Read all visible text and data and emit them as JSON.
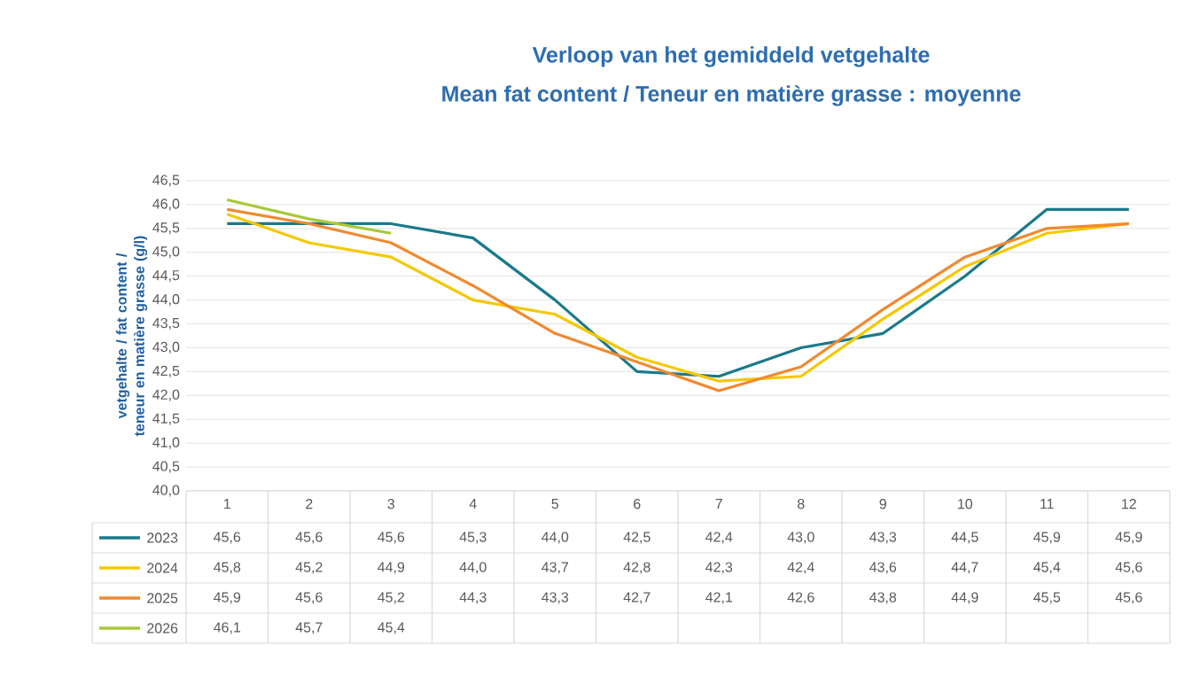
{
  "chart_data": {
    "type": "line",
    "title": "Verloop van het gemiddeld vetgehalte",
    "subtitle": "Mean fat content / Teneur en matière grasse : moyenne",
    "ylabel": "vetgehalte / fat content / teneur en matière grasse (g/l)",
    "categories": [
      "1",
      "2",
      "3",
      "4",
      "5",
      "6",
      "7",
      "8",
      "9",
      "10",
      "11",
      "12"
    ],
    "series": [
      {
        "name": "2023",
        "color": "#1a7a8a",
        "values": [
          45.6,
          45.6,
          45.6,
          45.3,
          44.0,
          42.5,
          42.4,
          43.0,
          43.3,
          44.5,
          45.9,
          45.9
        ],
        "value_labels": [
          "45,6",
          "45,6",
          "45,6",
          "45,3",
          "44,0",
          "42,5",
          "42,4",
          "43,0",
          "43,3",
          "44,5",
          "45,9",
          "45,9"
        ]
      },
      {
        "name": "2024",
        "color": "#f5c800",
        "values": [
          45.8,
          45.2,
          44.9,
          44.0,
          43.7,
          42.8,
          42.3,
          42.4,
          43.6,
          44.7,
          45.4,
          45.6
        ],
        "value_labels": [
          "45,8",
          "45,2",
          "44,9",
          "44,0",
          "43,7",
          "42,8",
          "42,3",
          "42,4",
          "43,6",
          "44,7",
          "45,4",
          "45,6"
        ]
      },
      {
        "name": "2025",
        "color": "#f08a30",
        "values": [
          45.9,
          45.6,
          45.2,
          44.3,
          43.3,
          42.7,
          42.1,
          42.6,
          43.8,
          44.9,
          45.5,
          45.6
        ],
        "value_labels": [
          "45,9",
          "45,6",
          "45,2",
          "44,3",
          "43,3",
          "42,7",
          "42,1",
          "42,6",
          "43,8",
          "44,9",
          "45,5",
          "45,6"
        ]
      },
      {
        "name": "2026",
        "color": "#a8c83a",
        "values": [
          46.1,
          45.7,
          45.4,
          null,
          null,
          null,
          null,
          null,
          null,
          null,
          null,
          null
        ],
        "value_labels": [
          "46,1",
          "45,7",
          "45,4",
          null,
          null,
          null,
          null,
          null,
          null,
          null,
          null,
          null
        ]
      }
    ],
    "ylim": [
      40.0,
      46.5
    ],
    "yticks": [
      {
        "value": 40.0,
        "label": "40,0"
      },
      {
        "value": 40.5,
        "label": "40,5"
      },
      {
        "value": 41.0,
        "label": "41,0"
      },
      {
        "value": 41.5,
        "label": "41,5"
      },
      {
        "value": 42.0,
        "label": "42,0"
      },
      {
        "value": 42.5,
        "label": "42,5"
      },
      {
        "value": 43.0,
        "label": "43,0"
      },
      {
        "value": 43.5,
        "label": "43,5"
      },
      {
        "value": 44.0,
        "label": "44,0"
      },
      {
        "value": 44.5,
        "label": "44,5"
      },
      {
        "value": 45.0,
        "label": "45,0"
      },
      {
        "value": 45.5,
        "label": "45,5"
      },
      {
        "value": 46.0,
        "label": "46,0"
      },
      {
        "value": 46.5,
        "label": "46,5"
      }
    ],
    "grid": "y",
    "legend": "bottom left",
    "marker": "none",
    "line_style": "solid"
  }
}
